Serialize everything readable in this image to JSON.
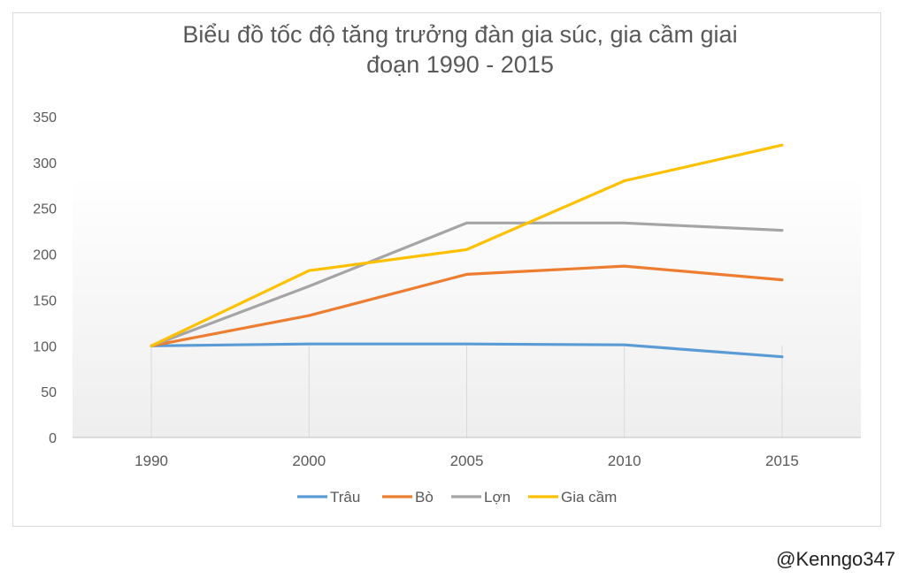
{
  "watermark": "@Kenngo347",
  "chart_data": {
    "type": "line",
    "title_lines": [
      "Biểu đồ tốc độ tăng trưởng đàn gia súc, gia cầm giai",
      "đoạn 1990 - 2015"
    ],
    "categories": [
      "1990",
      "2000",
      "2005",
      "2010",
      "2015"
    ],
    "ylim": [
      0,
      350
    ],
    "yticks": [
      0,
      50,
      100,
      150,
      200,
      250,
      300,
      350
    ],
    "xlabel": "",
    "ylabel": "",
    "legend_position": "bottom",
    "series": [
      {
        "name": "Trâu",
        "color": "#5b9bd5",
        "values": [
          100,
          102,
          102,
          101,
          88
        ]
      },
      {
        "name": "Bò",
        "color": "#ed7d31",
        "values": [
          100,
          133,
          178,
          187,
          172
        ]
      },
      {
        "name": "Lợn",
        "color": "#a5a5a5",
        "values": [
          100,
          165,
          234,
          234,
          226
        ]
      },
      {
        "name": "Gia cầm",
        "color": "#ffc000",
        "values": [
          100,
          182,
          205,
          280,
          319
        ]
      }
    ]
  }
}
